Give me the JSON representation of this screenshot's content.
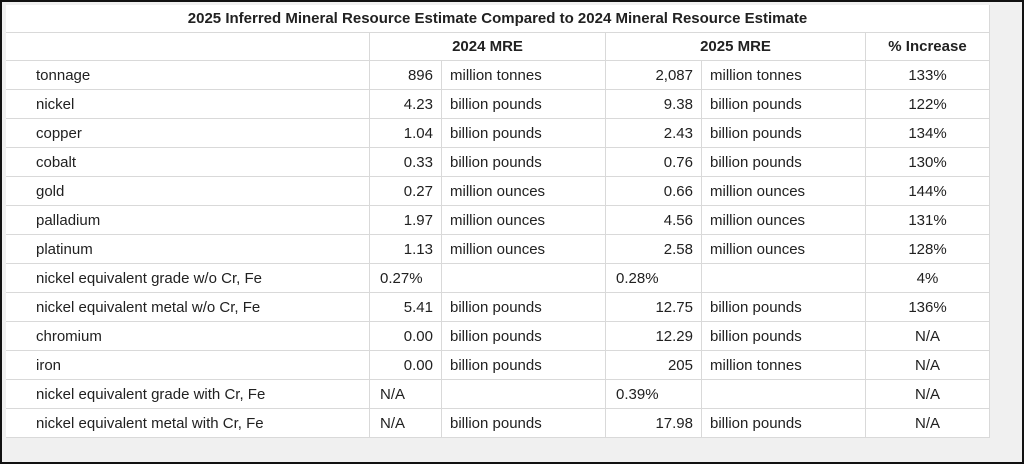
{
  "chart_data": {
    "type": "table",
    "title": "2025 Inferred Mineral Resource Estimate Compared to 2024 Mineral Resource Estimate",
    "columns": [
      "",
      "2024 MRE",
      "2025 MRE",
      "% Increase"
    ],
    "rows": [
      {
        "label": "tonnage",
        "v2024": "896",
        "u2024": "million tonnes",
        "v2025": "2,087",
        "u2025": "million tonnes",
        "increase": "133%"
      },
      {
        "label": "nickel",
        "v2024": "4.23",
        "u2024": "billion pounds",
        "v2025": "9.38",
        "u2025": "billion pounds",
        "increase": "122%"
      },
      {
        "label": "copper",
        "v2024": "1.04",
        "u2024": "billion pounds",
        "v2025": "2.43",
        "u2025": "billion pounds",
        "increase": "134%"
      },
      {
        "label": "cobalt",
        "v2024": "0.33",
        "u2024": "billion pounds",
        "v2025": "0.76",
        "u2025": "billion pounds",
        "increase": "130%"
      },
      {
        "label": "gold",
        "v2024": "0.27",
        "u2024": "million ounces",
        "v2025": "0.66",
        "u2025": "million ounces",
        "increase": "144%"
      },
      {
        "label": "palladium",
        "v2024": "1.97",
        "u2024": "million ounces",
        "v2025": "4.56",
        "u2025": "million ounces",
        "increase": "131%"
      },
      {
        "label": "platinum",
        "v2024": "1.13",
        "u2024": "million ounces",
        "v2025": "2.58",
        "u2025": "million ounces",
        "increase": "128%"
      },
      {
        "label": "nickel equivalent grade w/o Cr, Fe",
        "v2024": "0.27%",
        "u2024": "",
        "v2025": "0.28%",
        "u2025": "",
        "increase": "4%"
      },
      {
        "label": "nickel equivalent metal w/o Cr, Fe",
        "v2024": "5.41",
        "u2024": "billion pounds",
        "v2025": "12.75",
        "u2025": "billion pounds",
        "increase": "136%"
      },
      {
        "label": "chromium",
        "v2024": "0.00",
        "u2024": "billion pounds",
        "v2025": "12.29",
        "u2025": "billion pounds",
        "increase": "N/A"
      },
      {
        "label": "iron",
        "v2024": "0.00",
        "u2024": "billion pounds",
        "v2025": "205",
        "u2025": "million tonnes",
        "increase": "N/A"
      },
      {
        "label": "nickel equivalent grade with Cr, Fe",
        "v2024": "N/A",
        "u2024": "",
        "v2025": "0.39%",
        "u2025": "",
        "increase": "N/A"
      },
      {
        "label": "nickel equivalent metal with Cr, Fe",
        "v2024": "N/A",
        "u2024": "billion pounds",
        "v2025": "17.98",
        "u2025": "billion pounds",
        "increase": "N/A"
      }
    ]
  },
  "colors": {
    "grid": "#d9d9d9",
    "text": "#212121",
    "table_background": "#ffffff",
    "canvas_background": "#f0f0f0",
    "frame_border": "#111111"
  }
}
